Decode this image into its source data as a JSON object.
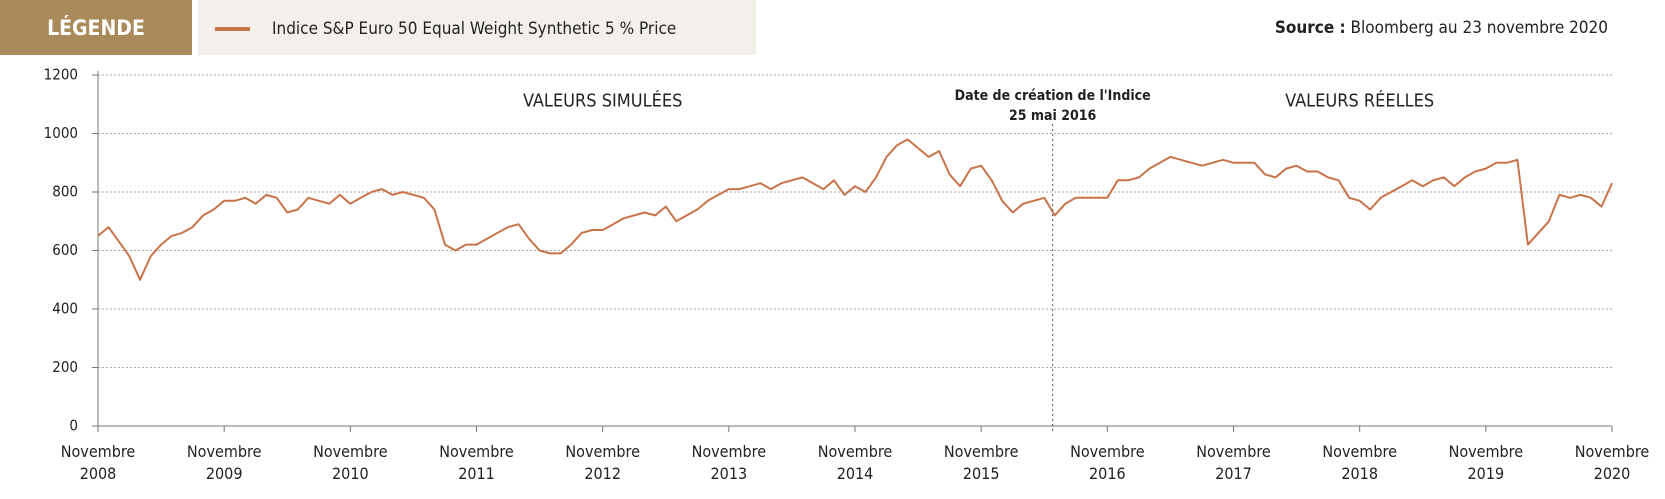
{
  "chart_data": {
    "type": "line",
    "legend_title": "LÉGENDE",
    "source_label": "Source :",
    "source_text": "Bloomberg au  23 novembre 2020",
    "x": [
      "2008-11",
      "2008-12",
      "2009-01",
      "2009-02",
      "2009-03",
      "2009-04",
      "2009-05",
      "2009-06",
      "2009-07",
      "2009-08",
      "2009-09",
      "2009-10",
      "2009-11",
      "2009-12",
      "2010-01",
      "2010-02",
      "2010-03",
      "2010-04",
      "2010-05",
      "2010-06",
      "2010-07",
      "2010-08",
      "2010-09",
      "2010-10",
      "2010-11",
      "2010-12",
      "2011-01",
      "2011-02",
      "2011-03",
      "2011-04",
      "2011-05",
      "2011-06",
      "2011-07",
      "2011-08",
      "2011-09",
      "2011-10",
      "2011-11",
      "2011-12",
      "2012-01",
      "2012-02",
      "2012-03",
      "2012-04",
      "2012-05",
      "2012-06",
      "2012-07",
      "2012-08",
      "2012-09",
      "2012-10",
      "2012-11",
      "2012-12",
      "2013-01",
      "2013-02",
      "2013-03",
      "2013-04",
      "2013-05",
      "2013-06",
      "2013-07",
      "2013-08",
      "2013-09",
      "2013-10",
      "2013-11",
      "2013-12",
      "2014-01",
      "2014-02",
      "2014-03",
      "2014-04",
      "2014-05",
      "2014-06",
      "2014-07",
      "2014-08",
      "2014-09",
      "2014-10",
      "2014-11",
      "2014-12",
      "2015-01",
      "2015-02",
      "2015-03",
      "2015-04",
      "2015-05",
      "2015-06",
      "2015-07",
      "2015-08",
      "2015-09",
      "2015-10",
      "2015-11",
      "2015-12",
      "2016-01",
      "2016-02",
      "2016-03",
      "2016-04",
      "2016-05",
      "2016-06",
      "2016-07",
      "2016-08",
      "2016-09",
      "2016-10",
      "2016-11",
      "2016-12",
      "2017-01",
      "2017-02",
      "2017-03",
      "2017-04",
      "2017-05",
      "2017-06",
      "2017-07",
      "2017-08",
      "2017-09",
      "2017-10",
      "2017-11",
      "2017-12",
      "2018-01",
      "2018-02",
      "2018-03",
      "2018-04",
      "2018-05",
      "2018-06",
      "2018-07",
      "2018-08",
      "2018-09",
      "2018-10",
      "2018-11",
      "2018-12",
      "2019-01",
      "2019-02",
      "2019-03",
      "2019-04",
      "2019-05",
      "2019-06",
      "2019-07",
      "2019-08",
      "2019-09",
      "2019-10",
      "2019-11",
      "2019-12",
      "2020-01",
      "2020-02",
      "2020-03",
      "2020-04",
      "2020-05",
      "2020-06",
      "2020-07",
      "2020-08",
      "2020-09",
      "2020-10",
      "2020-11"
    ],
    "series": [
      {
        "name": "Indice S&P Euro 50 Equal Weight Synthetic 5 % Price",
        "color": "#c8744a",
        "values": [
          650,
          680,
          630,
          580,
          500,
          580,
          620,
          650,
          660,
          680,
          720,
          740,
          770,
          770,
          780,
          760,
          790,
          780,
          730,
          740,
          780,
          770,
          760,
          790,
          760,
          780,
          800,
          810,
          790,
          800,
          790,
          780,
          740,
          620,
          600,
          620,
          620,
          640,
          660,
          680,
          690,
          640,
          600,
          590,
          590,
          620,
          660,
          670,
          670,
          690,
          710,
          720,
          730,
          720,
          750,
          700,
          720,
          740,
          770,
          790,
          810,
          810,
          820,
          830,
          810,
          830,
          840,
          850,
          830,
          810,
          840,
          790,
          820,
          800,
          850,
          920,
          960,
          980,
          950,
          920,
          940,
          860,
          820,
          880,
          890,
          840,
          770,
          730,
          760,
          770,
          780,
          720,
          760,
          780,
          780,
          780,
          780,
          840,
          840,
          850,
          880,
          900,
          920,
          910,
          900,
          890,
          900,
          910,
          900,
          900,
          900,
          860,
          850,
          880,
          890,
          870,
          870,
          850,
          840,
          780,
          770,
          740,
          780,
          800,
          820,
          840,
          820,
          840,
          850,
          820,
          850,
          870,
          880,
          900,
          900,
          910,
          620,
          660,
          700,
          790,
          780,
          790,
          780,
          750,
          830
        ]
      }
    ],
    "xlim": [
      "2008-11",
      "2020-11"
    ],
    "xticks": [
      {
        "value": "2008-11",
        "label": "Novembre 2008"
      },
      {
        "value": "2009-11",
        "label": "Novembre 2009"
      },
      {
        "value": "2010-11",
        "label": "Novembre 2010"
      },
      {
        "value": "2011-11",
        "label": "Novembre 2011"
      },
      {
        "value": "2012-11",
        "label": "Novembre 2012"
      },
      {
        "value": "2013-11",
        "label": "Novembre 2013"
      },
      {
        "value": "2014-11",
        "label": "Novembre 2014"
      },
      {
        "value": "2015-11",
        "label": "Novembre 2015"
      },
      {
        "value": "2016-11",
        "label": "Novembre 2016"
      },
      {
        "value": "2017-11",
        "label": "Novembre 2017"
      },
      {
        "value": "2018-11",
        "label": "Novembre 2018"
      },
      {
        "value": "2019-11",
        "label": "Novembre 2019"
      },
      {
        "value": "2020-11",
        "label": "Novembre 2020"
      }
    ],
    "ylim": [
      0,
      1200
    ],
    "yticks": [
      0,
      200,
      400,
      600,
      800,
      1000,
      1200
    ],
    "grid": true,
    "annotations": [
      {
        "text": "VALEURS SIMULÉES",
        "x": "2012-11",
        "y": 1110
      },
      {
        "text": "VALEURS RÉELLES",
        "x": "2018-11",
        "y": 1110
      },
      {
        "lines": [
          "Date de création de l'Indice",
          "25 mai 2016"
        ],
        "x": "2016-05-25"
      }
    ]
  }
}
